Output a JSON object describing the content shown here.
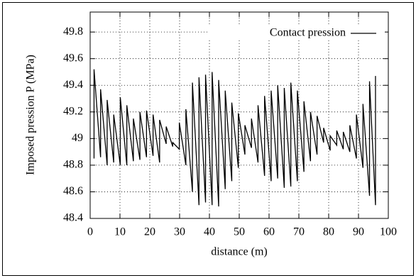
{
  "chart_data": {
    "type": "line",
    "xlabel": "distance (m)",
    "ylabel": "Imposed pression P (MPa)",
    "x": [
      1.3,
      1.3,
      3.5,
      3.5,
      5.7,
      5.7,
      7.9,
      7.9,
      10.1,
      10.1,
      12.3,
      12.3,
      14.5,
      14.5,
      16.7,
      16.7,
      18.9,
      18.9,
      21.1,
      21.1,
      23.3,
      23.3,
      25.5,
      25.5,
      27.7,
      27.7,
      29.9,
      29.9,
      32.1,
      32.1,
      34.3,
      34.3,
      36.5,
      36.5,
      38.7,
      38.7,
      40.9,
      40.9,
      43.1,
      43.1,
      45.3,
      45.3,
      47.5,
      47.5,
      49.7,
      49.7,
      51.9,
      51.9,
      54.1,
      54.1,
      56.3,
      56.3,
      58.5,
      58.5,
      60.7,
      60.7,
      62.9,
      62.9,
      65.1,
      65.1,
      67.3,
      67.3,
      69.5,
      69.5,
      71.7,
      71.7,
      73.9,
      73.9,
      76.1,
      76.1,
      78.3,
      78.3,
      80.5,
      80.5,
      82.7,
      82.7,
      84.9,
      84.9,
      87.1,
      87.1,
      89.3,
      89.3,
      91.5,
      91.5,
      93.7,
      93.7,
      95.7,
      95.7
    ],
    "series": [
      {
        "name": "Contact pression",
        "color": "#000000",
        "values": [
          48.85,
          49.52,
          48.86,
          49.37,
          48.8,
          49.29,
          48.82,
          49.18,
          48.8,
          49.31,
          48.8,
          49.25,
          48.83,
          49.15,
          48.84,
          49.2,
          48.86,
          49.21,
          48.87,
          49.18,
          48.82,
          49.14,
          48.96,
          49.09,
          48.94,
          48.97,
          48.92,
          49.12,
          48.8,
          49.22,
          48.6,
          49.42,
          48.5,
          49.46,
          48.52,
          49.48,
          48.5,
          49.5,
          48.49,
          49.44,
          48.62,
          49.36,
          48.68,
          49.27,
          48.78,
          49.19,
          48.88,
          49.1,
          48.93,
          49.15,
          48.82,
          49.25,
          48.72,
          49.32,
          48.68,
          49.36,
          48.7,
          49.4,
          48.63,
          49.38,
          48.64,
          49.42,
          48.68,
          49.36,
          48.75,
          49.28,
          48.83,
          49.2,
          48.88,
          49.17,
          48.97,
          49.08,
          48.91,
          49.02,
          48.95,
          49.06,
          48.92,
          49.05,
          48.9,
          49.1,
          48.85,
          49.18,
          48.78,
          49.26,
          48.57,
          49.43,
          48.5,
          49.47
        ]
      }
    ],
    "xlim": [
      0,
      100
    ],
    "xticks": [
      0,
      10,
      20,
      30,
      40,
      50,
      60,
      70,
      80,
      90,
      100
    ],
    "ylim": [
      48.4,
      49.95
    ],
    "yticks": [
      48.4,
      48.6,
      48.8,
      49,
      49.2,
      49.4,
      49.6,
      49.8
    ],
    "grid": true,
    "legend": "upper right"
  }
}
